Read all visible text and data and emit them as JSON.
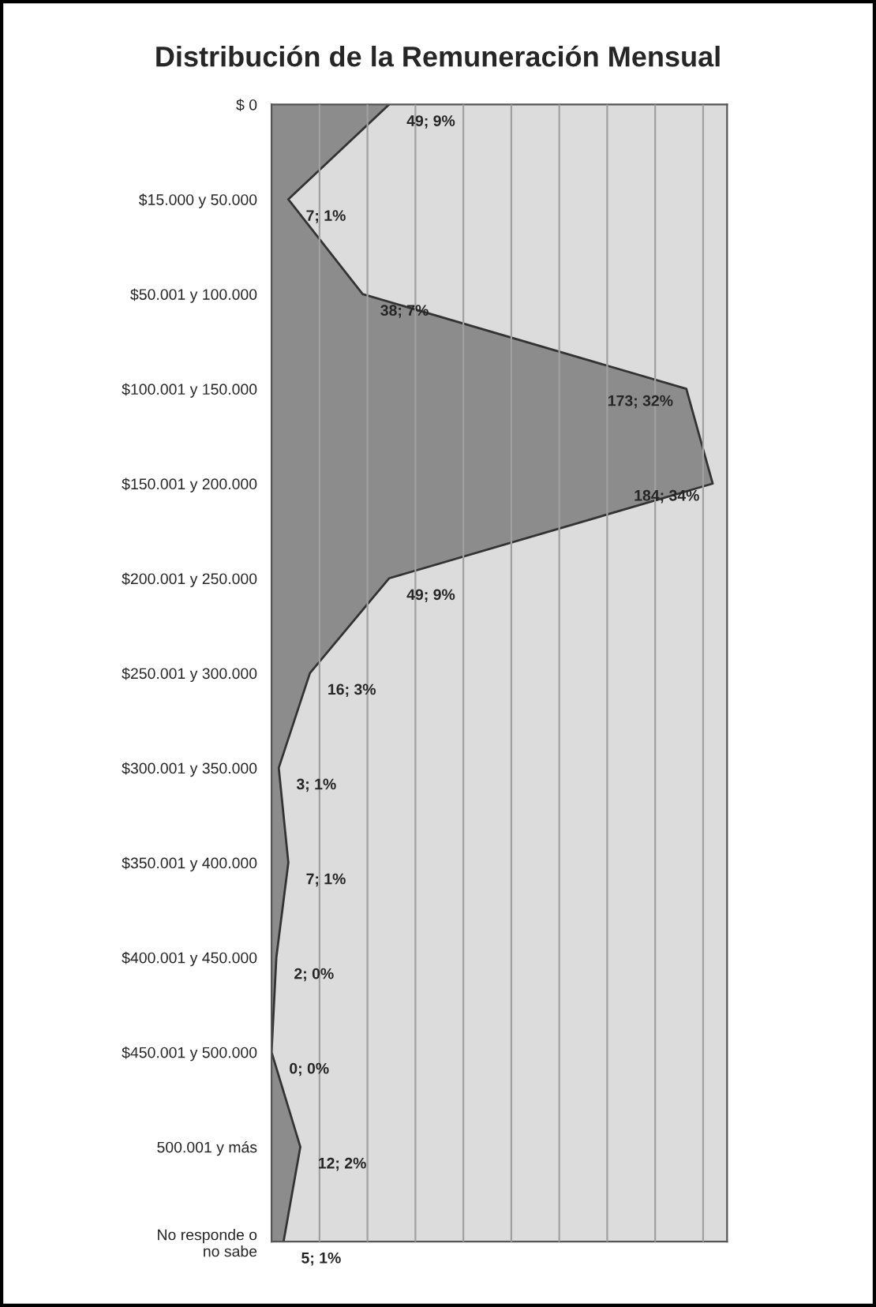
{
  "chart_data": {
    "type": "area",
    "orientation": "horizontal",
    "title": "Distribución de la Remuneración Mensual",
    "categories": [
      "$ 0",
      "$15.000 y 50.000",
      "$50.001 y 100.000",
      "$100.001 y 150.000",
      "$150.001 y 200.000",
      "$200.001 y 250.000",
      "$250.001 y 300.000",
      "$300.001 y 350.000",
      "$350.001 y 400.000",
      "$400.001 y 450.000",
      "$450.001 y 500.000",
      "500.001 y más",
      "No responde o\nno sabe"
    ],
    "series": [
      {
        "color": "#8c8c8c",
        "values": [
          49,
          7,
          38,
          173,
          184,
          49,
          16,
          3,
          7,
          2,
          0,
          12,
          5
        ],
        "value_labels": [
          "49; 9%",
          "7; 1%",
          "38; 7%",
          "173; 32%",
          "184; 34%",
          "49; 9%",
          "16; 3%",
          "3; 1%",
          "7; 1%",
          "2; 0%",
          "0; 0%",
          "12; 2%",
          "5; 1%"
        ]
      }
    ],
    "xlim": [
      0,
      190
    ],
    "xticks": [
      {
        "value": 20,
        "label": null
      },
      {
        "value": 40,
        "label": null
      },
      {
        "value": 60,
        "label": null
      },
      {
        "value": 80,
        "label": null
      },
      {
        "value": 100,
        "label": null
      },
      {
        "value": 120,
        "label": null
      },
      {
        "value": 140,
        "label": null
      },
      {
        "value": 160,
        "label": null
      },
      {
        "value": 180,
        "label": null
      }
    ],
    "grid": "x",
    "tick_labels": "y"
  }
}
